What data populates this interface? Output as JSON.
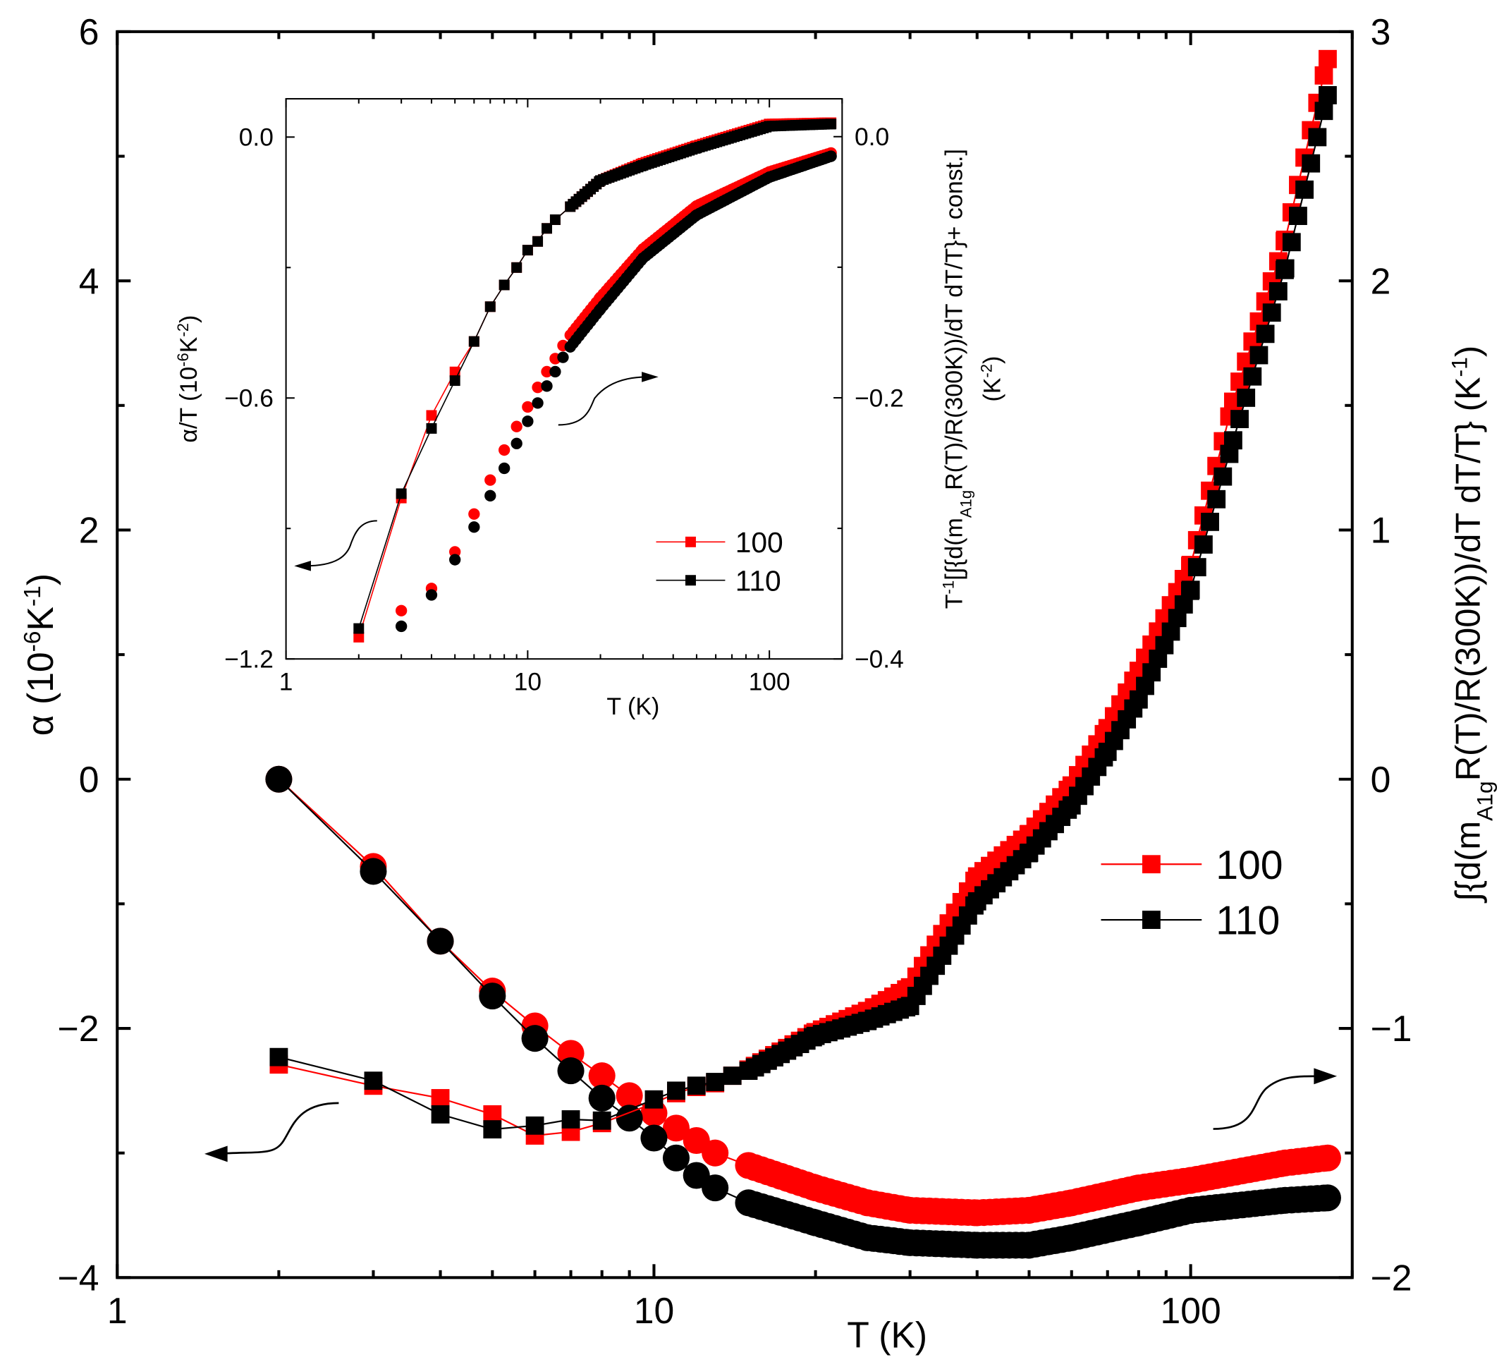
{
  "chart_data": [
    {
      "type": "scatter",
      "xlabel": "T (K)",
      "xscale": "log",
      "xlim": [
        1,
        200
      ],
      "xticks": [
        "1",
        "10",
        "100"
      ],
      "ylabel_left": [
        {
          "t": "α (10"
        },
        {
          "t": "-6",
          "sup": true
        },
        {
          "t": "K"
        },
        {
          "t": "-1",
          "sup": true
        },
        {
          "t": ")"
        }
      ],
      "ylim_left": [
        -4,
        6
      ],
      "yticks_left": [
        "−4",
        "−2",
        "0",
        "2",
        "4",
        "6"
      ],
      "ylabel_right": [
        {
          "t": "∫{d(m"
        },
        {
          "t": "A1g",
          "sub": true
        },
        {
          "t": "R(T)/R(300K))/dT dT/T}  (K"
        },
        {
          "t": "-1",
          "sup": true
        },
        {
          "t": ")"
        }
      ],
      "ylim_right": [
        -2,
        3
      ],
      "yticks_right": [
        "−2",
        "−1",
        "0",
        "1",
        "2",
        "3"
      ],
      "legend_position": "right",
      "colors": {
        "100": "#ff0000",
        "110": "#000000"
      },
      "series": [
        {
          "name": "100",
          "marker": "square",
          "axis": "left",
          "color": "#ff0000",
          "x": [
            2,
            3,
            4,
            5,
            6,
            7,
            8,
            10,
            11,
            12,
            13,
            14,
            15,
            20,
            25,
            30,
            40,
            50,
            60,
            70,
            80,
            100,
            120,
            150,
            180
          ],
          "y": [
            -2.29,
            -2.46,
            -2.56,
            -2.69,
            -2.86,
            -2.83,
            -2.76,
            -2.6,
            -2.52,
            -2.47,
            -2.44,
            -2.38,
            -2.33,
            -2.03,
            -1.86,
            -1.67,
            -0.78,
            -0.44,
            -0.05,
            0.41,
            0.87,
            1.72,
            3.03,
            4.33,
            5.78
          ]
        },
        {
          "name": "110",
          "marker": "square",
          "axis": "left",
          "color": "#000000",
          "x": [
            2,
            3,
            4,
            5,
            6,
            7,
            8,
            10,
            11,
            12,
            13,
            14,
            15,
            20,
            25,
            30,
            40,
            50,
            60,
            70,
            80,
            100,
            120,
            150,
            180
          ],
          "y": [
            -2.23,
            -2.42,
            -2.69,
            -2.81,
            -2.78,
            -2.73,
            -2.74,
            -2.57,
            -2.5,
            -2.46,
            -2.43,
            -2.38,
            -2.34,
            -2.06,
            -1.94,
            -1.82,
            -0.98,
            -0.59,
            -0.21,
            0.22,
            0.64,
            1.52,
            2.72,
            4.1,
            5.49
          ]
        },
        {
          "name": "100",
          "marker": "circle",
          "axis": "right",
          "color": "#ff0000",
          "x": [
            2,
            3,
            4,
            5,
            6,
            7,
            8,
            9,
            10,
            11,
            12,
            13,
            15,
            20,
            25,
            30,
            40,
            50,
            60,
            80,
            100,
            150,
            180
          ],
          "y": [
            0,
            -0.35,
            -0.65,
            -0.85,
            -0.99,
            -1.1,
            -1.19,
            -1.27,
            -1.34,
            -1.4,
            -1.45,
            -1.5,
            -1.55,
            -1.64,
            -1.7,
            -1.73,
            -1.74,
            -1.73,
            -1.7,
            -1.64,
            -1.61,
            -1.54,
            -1.52
          ]
        },
        {
          "name": "110",
          "marker": "circle",
          "axis": "right",
          "color": "#000000",
          "x": [
            2,
            3,
            4,
            5,
            6,
            7,
            8,
            9,
            10,
            11,
            12,
            13,
            15,
            20,
            25,
            30,
            40,
            50,
            60,
            80,
            100,
            150,
            180
          ],
          "y": [
            0,
            -0.37,
            -0.65,
            -0.87,
            -1.04,
            -1.17,
            -1.28,
            -1.36,
            -1.44,
            -1.52,
            -1.59,
            -1.64,
            -1.7,
            -1.78,
            -1.84,
            -1.86,
            -1.87,
            -1.87,
            -1.84,
            -1.78,
            -1.73,
            -1.69,
            -1.68
          ]
        }
      ]
    },
    {
      "type": "scatter",
      "inset": true,
      "xlabel": "T (K)",
      "xscale": "log",
      "xlim": [
        1,
        200
      ],
      "xticks": [
        "1",
        "10",
        "100"
      ],
      "ylabel_left": [
        {
          "t": "α/T (10"
        },
        {
          "t": "-6",
          "sup": true
        },
        {
          "t": "K"
        },
        {
          "t": "-2",
          "sup": true
        },
        {
          "t": ")"
        }
      ],
      "ylim_left": [
        -1.2,
        0.088
      ],
      "yticks_left": [
        "−1.2",
        "−0.6",
        "0.0"
      ],
      "ylabel_right": [
        {
          "t": "T"
        },
        {
          "t": "-1",
          "sup": true
        },
        {
          "t": "[∫{d(m"
        },
        {
          "t": "A1g",
          "sub": true
        },
        {
          "t": "R(T)/R(300K))/dT dT/T}+ const.]"
        }
      ],
      "ylabel_right_line2": [
        {
          "t": "(K"
        },
        {
          "t": "-2",
          "sup": true
        },
        {
          "t": ")"
        }
      ],
      "ylim_right": [
        -0.4,
        0.029
      ],
      "yticks_right": [
        "−0.4",
        "−0.2",
        "0.0"
      ],
      "legend_position": "bottom-right",
      "series": [
        {
          "name": "100",
          "marker": "square",
          "axis": "left",
          "color": "#ff0000",
          "x": [
            2,
            3,
            4,
            5,
            6,
            7,
            8,
            9,
            10,
            11,
            12,
            13,
            15,
            20,
            30,
            50,
            100,
            180
          ],
          "y": [
            -1.15,
            -0.83,
            -0.64,
            -0.54,
            -0.47,
            -0.39,
            -0.34,
            -0.3,
            -0.26,
            -0.24,
            -0.21,
            -0.19,
            -0.16,
            -0.1,
            -0.06,
            -0.02,
            0.03,
            0.033
          ]
        },
        {
          "name": "110",
          "marker": "square",
          "axis": "left",
          "color": "#000000",
          "x": [
            2,
            3,
            4,
            5,
            6,
            7,
            8,
            9,
            10,
            11,
            12,
            13,
            15,
            20,
            30,
            50,
            100,
            180
          ],
          "y": [
            -1.13,
            -0.82,
            -0.67,
            -0.56,
            -0.47,
            -0.39,
            -0.34,
            -0.3,
            -0.26,
            -0.24,
            -0.21,
            -0.19,
            -0.16,
            -0.1,
            -0.065,
            -0.025,
            0.025,
            0.03
          ]
        },
        {
          "name": "100",
          "marker": "circle",
          "axis": "right",
          "color": "#ff0000",
          "x": [
            3,
            4,
            5,
            6,
            7,
            8,
            9,
            10,
            11,
            12,
            13,
            14,
            15,
            20,
            30,
            50,
            100,
            180
          ],
          "y": [
            -0.363,
            -0.346,
            -0.318,
            -0.289,
            -0.263,
            -0.24,
            -0.222,
            -0.207,
            -0.192,
            -0.18,
            -0.17,
            -0.16,
            -0.152,
            -0.123,
            -0.086,
            -0.053,
            -0.027,
            -0.0125
          ]
        },
        {
          "name": "110",
          "marker": "circle",
          "axis": "right",
          "color": "#000000",
          "x": [
            3,
            4,
            5,
            6,
            7,
            8,
            9,
            10,
            11,
            12,
            13,
            14,
            15,
            20,
            30,
            50,
            100,
            180
          ],
          "y": [
            -0.375,
            -0.351,
            -0.324,
            -0.299,
            -0.275,
            -0.254,
            -0.235,
            -0.218,
            -0.204,
            -0.191,
            -0.18,
            -0.169,
            -0.161,
            -0.132,
            -0.093,
            -0.06,
            -0.031,
            -0.015
          ]
        }
      ]
    }
  ]
}
